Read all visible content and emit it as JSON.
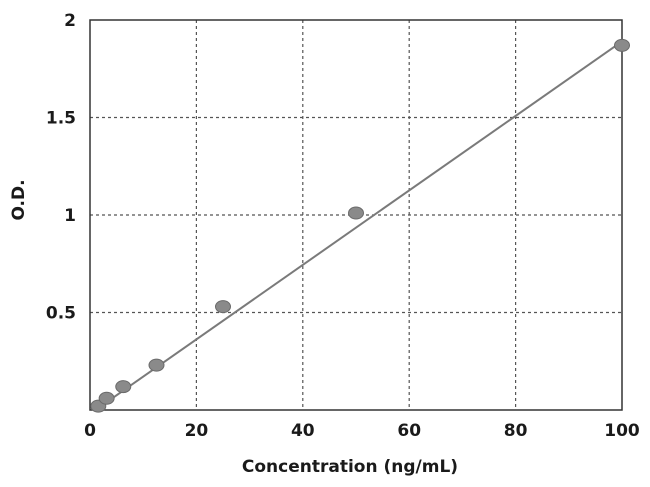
{
  "chart_data": {
    "type": "scatter",
    "title": "",
    "xlabel": "Concentration (ng/mL)",
    "ylabel": "O.D.",
    "xlim": [
      0,
      100
    ],
    "ylim": [
      0,
      2
    ],
    "x_ticks": [
      0,
      20,
      40,
      60,
      80,
      100
    ],
    "x_tick_labels": [
      "0",
      "20",
      "40",
      "60",
      "80",
      "100"
    ],
    "y_ticks": [
      0.5,
      1,
      1.5,
      2
    ],
    "y_tick_labels": [
      "0.5",
      "1",
      "1.5",
      "2"
    ],
    "grid": true,
    "legend": "none",
    "series": [
      {
        "x": [
          1.56,
          3.13,
          6.25,
          12.5,
          25,
          50,
          100
        ],
        "y": [
          0.02,
          0.06,
          0.12,
          0.23,
          0.53,
          1.01,
          1.87
        ]
      }
    ],
    "trendline": {
      "type": "linear",
      "x": [
        1.56,
        100
      ],
      "y": [
        0.01,
        1.89
      ]
    },
    "colors": {
      "points": "#8a8a8a",
      "line": "#7a7a7a",
      "grid": "#555555",
      "frame": "#333333"
    }
  }
}
